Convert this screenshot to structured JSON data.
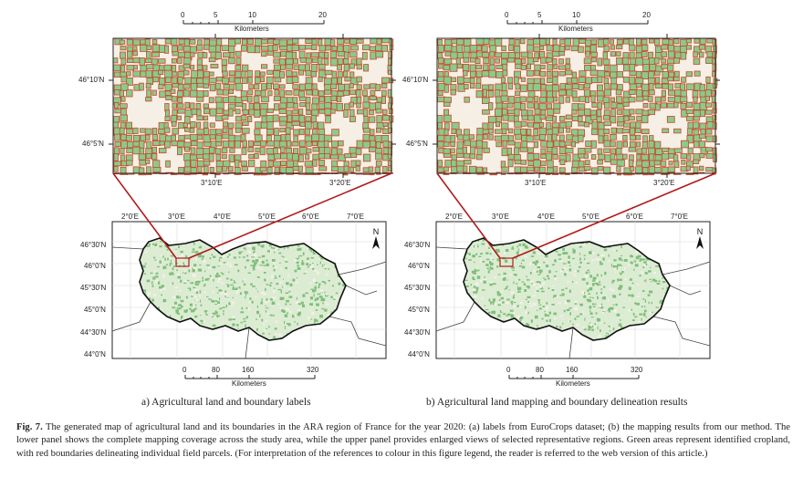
{
  "panels": [
    {
      "id": "a",
      "zoom": {
        "scale_ticks": [
          "0",
          "5",
          "10",
          "20"
        ],
        "scale_unit": "Kilometers",
        "lat_labels": [
          "46°10'N",
          "46°5'N"
        ],
        "lon_labels": [
          "3°10'E",
          "3°20'E"
        ]
      },
      "overview": {
        "lon_labels": [
          "2°0'E",
          "3°0'E",
          "4°0'E",
          "5°0'E",
          "6°0'E",
          "7°0'E"
        ],
        "lat_labels": [
          "46°30'N",
          "46°0'N",
          "45°30'N",
          "45°0'N",
          "44°30'N",
          "44°0'N"
        ],
        "north_label": "N",
        "scale_ticks": [
          "0",
          "80",
          "160",
          "320"
        ],
        "scale_unit": "Kilometers"
      },
      "caption": "a) Agricultural land and boundary labels"
    },
    {
      "id": "b",
      "zoom": {
        "scale_ticks": [
          "0",
          "5",
          "10",
          "20"
        ],
        "scale_unit": "Kilometers",
        "lat_labels": [
          "46°10'N",
          "46°5'N"
        ],
        "lon_labels": [
          "3°10'E",
          "3°20'E"
        ]
      },
      "overview": {
        "lon_labels": [
          "2°0'E",
          "3°0'E",
          "4°0'E",
          "5°0'E",
          "6°0'E",
          "7°0'E"
        ],
        "lat_labels": [
          "46°30'N",
          "46°0'N",
          "45°30'N",
          "45°0'N",
          "44°30'N",
          "44°0'N"
        ],
        "north_label": "N",
        "scale_ticks": [
          "0",
          "80",
          "160",
          "320"
        ],
        "scale_unit": "Kilometers"
      },
      "caption": "b) Agricultural land mapping and boundary delineation results"
    }
  ],
  "figure_caption": {
    "label": "Fig. 7.",
    "text": " The generated map of agricultural land and its boundaries in the ARA region of France for the year 2020: (a) labels from EuroCrops dataset; (b) the mapping results from our method. The lower panel shows the complete mapping coverage across the study area, while the upper panel provides enlarged views of selected representative regions. Green areas represent identified cropland, with red boundaries delineating individual field parcels. (For interpretation of the references to colour in this figure legend, the reader is referred to the web version of this article.)"
  },
  "colors": {
    "cropland": "#8cc98a",
    "boundary": "#c8462a",
    "background": "#f6efe6",
    "connector": "#b01a1a"
  }
}
